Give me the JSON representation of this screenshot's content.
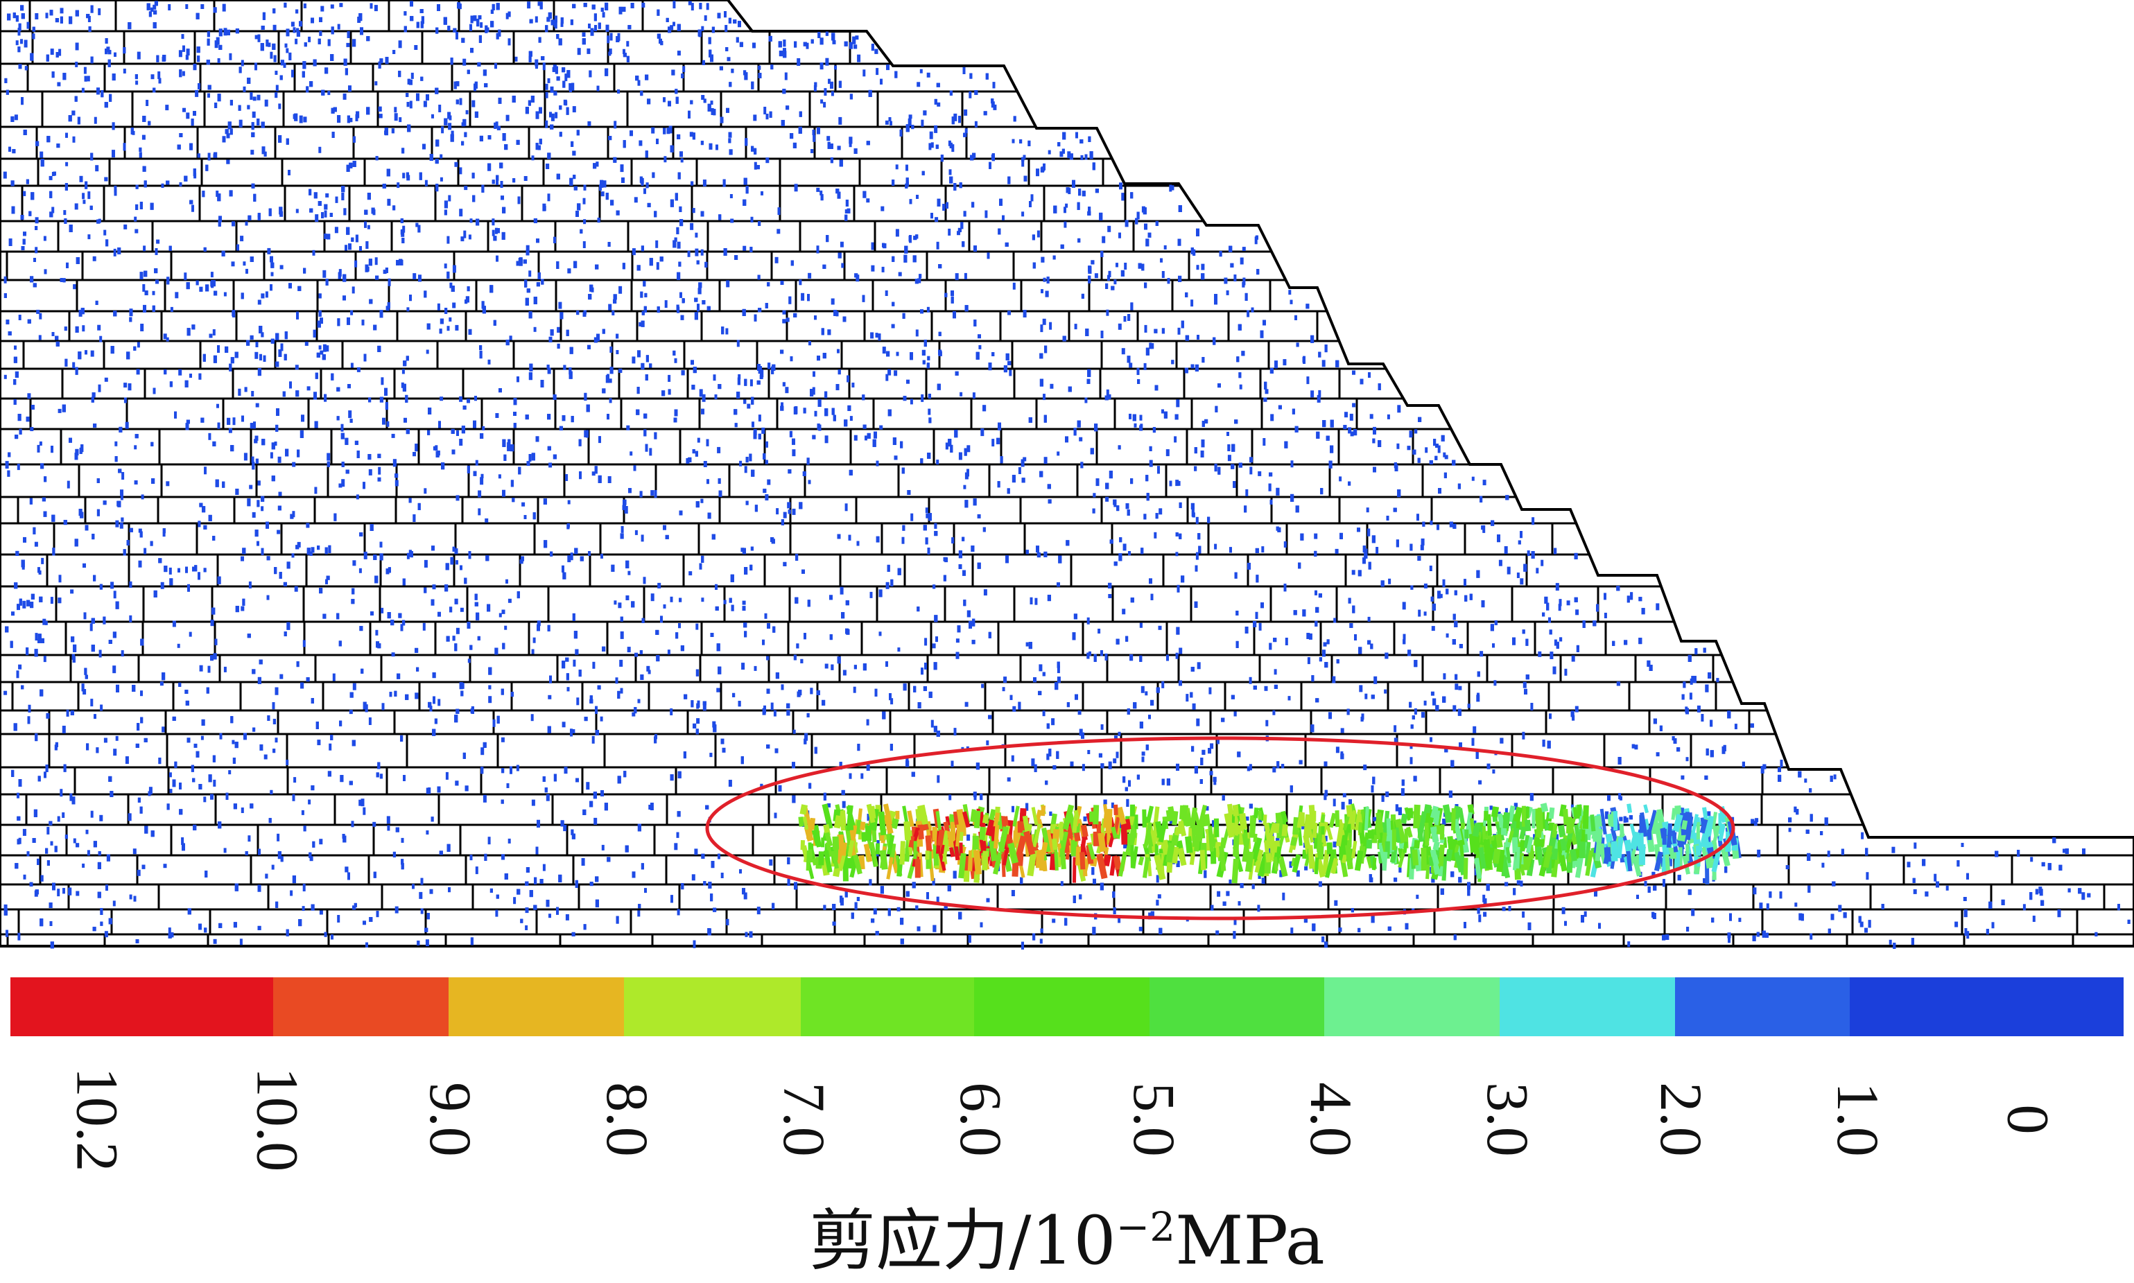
{
  "legend": {
    "title_prefix": "剪应力/10",
    "title_exponent": "−2",
    "title_unit": "MPa",
    "bins": [
      {
        "color": "#e3141e"
      },
      {
        "color": "#e94a23"
      },
      {
        "color": "#e6b622"
      },
      {
        "color": "#aee92a"
      },
      {
        "color": "#6fe424"
      },
      {
        "color": "#56e01c"
      },
      {
        "color": "#4fe03f"
      },
      {
        "color": "#6df090"
      },
      {
        "color": "#4fe3e3"
      },
      {
        "color": "#2a60e6"
      },
      {
        "color": "#1b3fdb"
      }
    ],
    "ticks": [
      "10.2",
      "10.0",
      "9.0",
      "8.0",
      "7.0",
      "6.0",
      "5.0",
      "4.0",
      "3.0",
      "2.0",
      "1.0",
      "0"
    ]
  },
  "colors": {
    "block_outline": "#000000",
    "contact_low": "#1e4be6",
    "highlight_ellipse": "#e0202a"
  }
}
